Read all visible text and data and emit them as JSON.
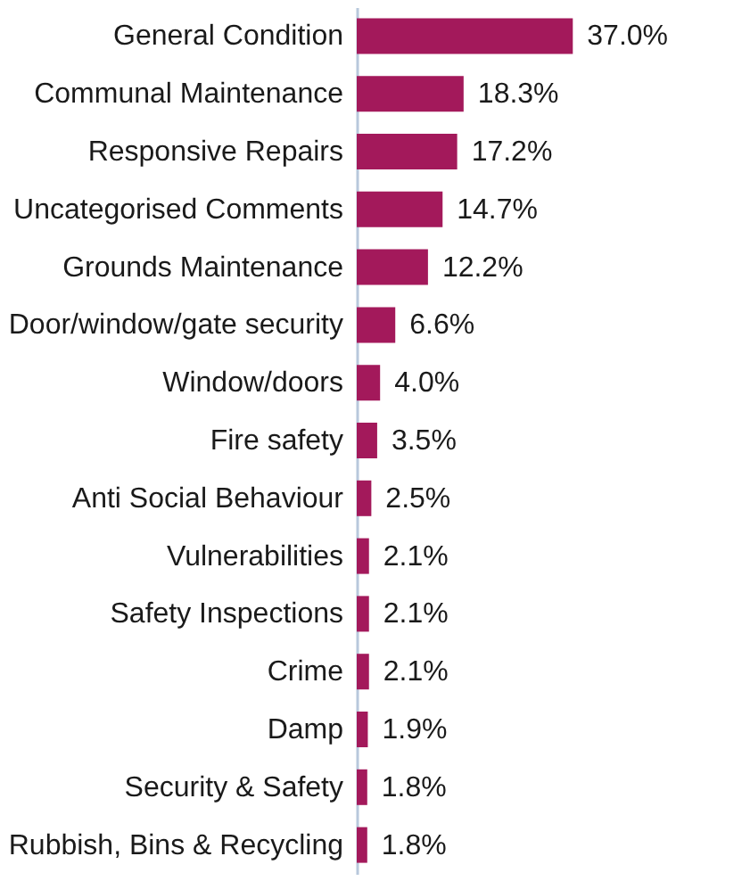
{
  "chart_data": {
    "type": "bar",
    "orientation": "horizontal",
    "categories": [
      "General Condition",
      "Communal Maintenance",
      "Responsive Repairs",
      "Uncategorised Comments",
      "Grounds Maintenance",
      "Door/window/gate security",
      "Window/doors",
      "Fire safety",
      "Anti Social Behaviour",
      "Vulnerabilities",
      "Safety Inspections",
      "Crime",
      "Damp",
      "Security & Safety",
      "Rubbish, Bins & Recycling"
    ],
    "values": [
      37.0,
      18.3,
      17.2,
      14.7,
      12.2,
      6.6,
      4.0,
      3.5,
      2.5,
      2.1,
      2.1,
      2.1,
      1.9,
      1.8,
      1.8
    ],
    "value_labels": [
      "37.0%",
      "18.3%",
      "17.2%",
      "14.7%",
      "12.2%",
      "6.6%",
      "4.0%",
      "3.5%",
      "2.5%",
      "2.1%",
      "2.1%",
      "2.1%",
      "1.9%",
      "1.8%",
      "1.8%"
    ],
    "color": "#a3195b"
  }
}
